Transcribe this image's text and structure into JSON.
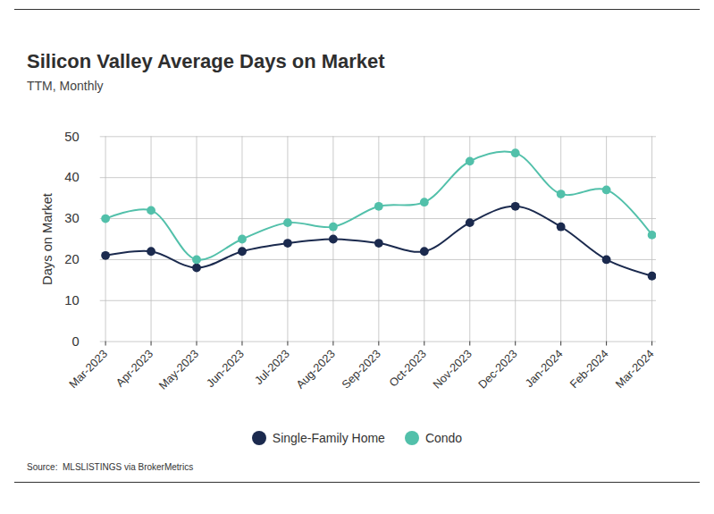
{
  "chart_data": {
    "type": "line",
    "title": "Silicon Valley Average Days on Market",
    "subtitle": "TTM, Monthly",
    "y_label": "Days on Market",
    "source": "Source:  MLSLISTINGS via BrokerMetrics",
    "categories": [
      "Mar-2023",
      "Apr-2023",
      "May-2023",
      "Jun-2023",
      "Jul-2023",
      "Aug-2023",
      "Sep-2023",
      "Oct-2023",
      "Nov-2023",
      "Dec-2023",
      "Jan-2024",
      "Feb-2024",
      "Mar-2024"
    ],
    "series": [
      {
        "name": "Single-Family Home",
        "color": "#1b2a4e",
        "values": [
          21,
          22,
          18,
          22,
          24,
          25,
          24,
          22,
          29,
          33,
          28,
          20,
          16
        ]
      },
      {
        "name": "Condo",
        "color": "#52c0aa",
        "values": [
          30,
          32,
          20,
          25,
          29,
          28,
          33,
          34,
          44,
          46,
          36,
          37,
          26
        ]
      }
    ],
    "ylim": [
      0,
      50
    ],
    "yticks": [
      0,
      10,
      20,
      30,
      40,
      50
    ],
    "grid": true,
    "marker": "circle",
    "legend": "bottom"
  }
}
